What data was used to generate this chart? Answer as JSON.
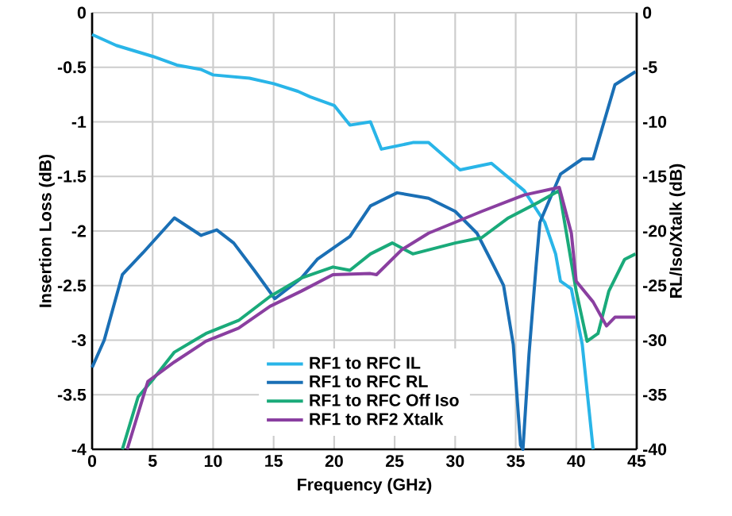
{
  "chart_data": {
    "type": "line",
    "xlabel": "Frequency (GHz)",
    "ylabel": "Insertion Loss (dB)",
    "y2label": "RL/Iso/Xtalk (dB)",
    "xlim": [
      0,
      45
    ],
    "xticks": [
      0,
      5,
      10,
      15,
      20,
      25,
      30,
      35,
      40,
      45
    ],
    "ylim": [
      -4,
      0
    ],
    "yticks": [
      0,
      -0.5,
      -1,
      -1.5,
      -2,
      -2.5,
      -3,
      -3.5,
      -4
    ],
    "y2lim": [
      -40,
      0
    ],
    "y2ticks": [
      0,
      -5,
      -10,
      -15,
      -20,
      -25,
      -30,
      -35,
      -40
    ],
    "grid": true,
    "legend": "bottom",
    "line_style": "solid",
    "marker": "none",
    "series": [
      {
        "name": "RF1 to RFC IL",
        "color": "#29b5e8",
        "x": [
          0,
          2,
          5,
          7,
          9,
          10,
          13,
          15,
          17,
          18,
          20,
          21.3,
          23,
          23.9,
          26.5,
          27.8,
          30.4,
          33,
          35.7,
          37.4,
          38.3,
          38.7,
          39.6,
          40.5,
          41.4
        ],
        "values": [
          -0.2,
          -0.3,
          -0.4,
          -0.48,
          -0.52,
          -0.57,
          -0.6,
          -0.65,
          -0.72,
          -0.77,
          -0.85,
          -1.03,
          -1.0,
          -1.25,
          -1.19,
          -1.19,
          -1.44,
          -1.38,
          -1.63,
          -1.92,
          -2.21,
          -2.46,
          -2.53,
          -3.04,
          -4.0
        ]
      },
      {
        "name": "RF1 to RFC RL",
        "color": "#1a6fb5",
        "axis": "y2",
        "x": [
          0,
          1,
          2.5,
          4.2,
          6.8,
          9.0,
          10.3,
          11.7,
          13.4,
          15.1,
          17.3,
          18.6,
          21.3,
          23,
          25.2,
          27.8,
          30,
          31.8,
          33.1,
          34,
          34.8,
          35.4,
          35.6,
          36.1,
          36.7,
          37,
          38.7,
          40.5,
          41.4,
          42.3,
          43.2,
          44.9
        ],
        "values": [
          -32.5,
          -30,
          -24,
          -22,
          -18.8,
          -20.4,
          -19.9,
          -21.1,
          -23.6,
          -26.2,
          -24.3,
          -22.6,
          -20.5,
          -17.7,
          -16.5,
          -17,
          -18.2,
          -20.2,
          -23,
          -25,
          -30.4,
          -39.6,
          -40,
          -31.3,
          -23,
          -19.2,
          -14.8,
          -13.4,
          -13.4,
          -10,
          -6.6,
          -5.4
        ]
      },
      {
        "name": "RF1 to RFC Off Iso",
        "color": "#1aaa7a",
        "axis": "y2",
        "x": [
          2.5,
          3.8,
          5.1,
          6.8,
          9.4,
          12.1,
          14.7,
          17.3,
          19.9,
          21.3,
          23,
          24.8,
          26.5,
          30,
          32.2,
          34.4,
          37,
          38.6,
          40,
          40.9,
          41.8,
          42.7,
          44,
          44.9
        ],
        "values": [
          -40,
          -35.2,
          -33.5,
          -31.1,
          -29.4,
          -28.2,
          -26,
          -24.3,
          -23.3,
          -23.6,
          -22.1,
          -21.1,
          -22.1,
          -21.1,
          -20.6,
          -18.8,
          -17.3,
          -16.3,
          -25.5,
          -30.1,
          -29.4,
          -25.5,
          -22.6,
          -22.1
        ]
      },
      {
        "name": "RF1 to RF2 Xtalk",
        "color": "#8a3fa0",
        "axis": "y2",
        "x": [
          2.9,
          4.6,
          6.8,
          9.4,
          12.1,
          14.7,
          17.3,
          19.9,
          23,
          23.5,
          25.6,
          27.8,
          32.2,
          35.7,
          38.6,
          39.6,
          40,
          41.4,
          42.5,
          43.2,
          44.9
        ],
        "values": [
          -40,
          -33.8,
          -32,
          -30.1,
          -28.9,
          -26.9,
          -25.5,
          -24,
          -23.9,
          -24,
          -21.7,
          -20.2,
          -18.2,
          -16.7,
          -16,
          -20.2,
          -24.6,
          -26.5,
          -28.7,
          -27.9,
          -27.9
        ]
      }
    ]
  }
}
